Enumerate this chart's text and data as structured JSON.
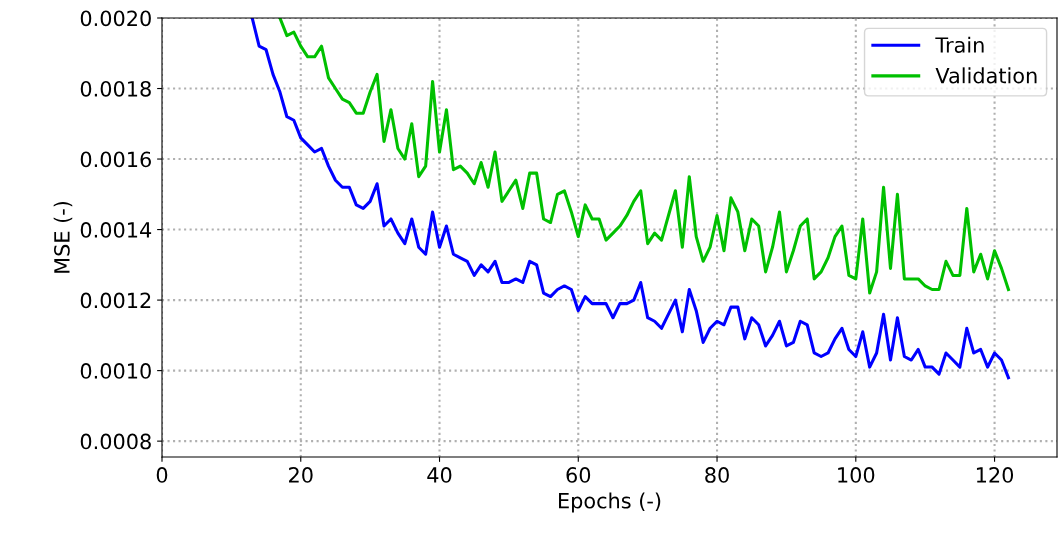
{
  "chart_data": {
    "type": "line",
    "xlabel": "Epochs (-)",
    "ylabel": "MSE (-)",
    "xlim": [
      0,
      129
    ],
    "xticks": [
      0,
      20,
      40,
      60,
      80,
      100,
      120
    ],
    "ylim": [
      0.000755,
      0.002
    ],
    "yticks": [
      {
        "value": 0.0008,
        "label": "0.0008"
      },
      {
        "value": 0.001,
        "label": "0.0010"
      },
      {
        "value": 0.0012,
        "label": "0.0012"
      },
      {
        "value": 0.0014,
        "label": "0.0014"
      },
      {
        "value": 0.0016,
        "label": "0.0016"
      },
      {
        "value": 0.0018,
        "label": "0.0018"
      },
      {
        "value": 0.002,
        "label": "0.0020"
      }
    ],
    "grid": true,
    "legend": "top right",
    "marker": "none",
    "line_style": "solid",
    "series": [
      {
        "name": "Train",
        "color": "#0000ff",
        "x": [
          13,
          14,
          15,
          16,
          17,
          18,
          19,
          20,
          21,
          22,
          23,
          24,
          25,
          26,
          27,
          28,
          29,
          30,
          31,
          32,
          33,
          34,
          35,
          36,
          37,
          38,
          39,
          40,
          41,
          42,
          43,
          44,
          45,
          46,
          47,
          48,
          49,
          50,
          51,
          52,
          53,
          54,
          55,
          56,
          57,
          58,
          59,
          60,
          61,
          62,
          63,
          64,
          65,
          66,
          67,
          68,
          69,
          70,
          71,
          72,
          73,
          74,
          75,
          76,
          77,
          78,
          79,
          80,
          81,
          82,
          83,
          84,
          85,
          86,
          87,
          88,
          89,
          90,
          91,
          92,
          93,
          94,
          95,
          96,
          97,
          98,
          99,
          100,
          101,
          102,
          103,
          104,
          105,
          106,
          107,
          108,
          109,
          110,
          111,
          112,
          113,
          114,
          115,
          116,
          117,
          118,
          119,
          120,
          121,
          122
        ],
        "values": [
          0.002,
          0.00192,
          0.00191,
          0.00184,
          0.00179,
          0.00172,
          0.00171,
          0.00166,
          0.00164,
          0.00162,
          0.00163,
          0.00158,
          0.00154,
          0.00152,
          0.00152,
          0.00147,
          0.00146,
          0.00148,
          0.00153,
          0.00141,
          0.00143,
          0.00139,
          0.00136,
          0.00143,
          0.00135,
          0.00133,
          0.00145,
          0.00135,
          0.00141,
          0.00133,
          0.00132,
          0.00131,
          0.00127,
          0.0013,
          0.00128,
          0.00131,
          0.00125,
          0.00125,
          0.00126,
          0.00125,
          0.00131,
          0.0013,
          0.00122,
          0.00121,
          0.00123,
          0.00124,
          0.00123,
          0.00117,
          0.00121,
          0.00119,
          0.00119,
          0.00119,
          0.00115,
          0.00119,
          0.00119,
          0.0012,
          0.00125,
          0.00115,
          0.00114,
          0.00112,
          0.00116,
          0.0012,
          0.00111,
          0.00123,
          0.00117,
          0.00108,
          0.00112,
          0.00114,
          0.00113,
          0.00118,
          0.00118,
          0.00109,
          0.00115,
          0.00113,
          0.00107,
          0.0011,
          0.00114,
          0.00107,
          0.00108,
          0.00114,
          0.00113,
          0.00105,
          0.00104,
          0.00105,
          0.00109,
          0.00112,
          0.00106,
          0.00104,
          0.00111,
          0.00101,
          0.00105,
          0.00116,
          0.00103,
          0.00115,
          0.00104,
          0.00103,
          0.00106,
          0.00101,
          0.00101,
          0.00099,
          0.00105,
          0.00103,
          0.00101,
          0.00112,
          0.00105,
          0.00106,
          0.00101,
          0.00105,
          0.00103,
          0.00098
        ]
      },
      {
        "name": "Validation",
        "color": "#00c000",
        "x": [
          17,
          18,
          19,
          20,
          21,
          22,
          23,
          24,
          25,
          26,
          27,
          28,
          29,
          30,
          31,
          32,
          33,
          34,
          35,
          36,
          37,
          38,
          39,
          40,
          41,
          42,
          43,
          44,
          45,
          46,
          47,
          48,
          49,
          50,
          51,
          52,
          53,
          54,
          55,
          56,
          57,
          58,
          59,
          60,
          61,
          62,
          63,
          64,
          65,
          66,
          67,
          68,
          69,
          70,
          71,
          72,
          73,
          74,
          75,
          76,
          77,
          78,
          79,
          80,
          81,
          82,
          83,
          84,
          85,
          86,
          87,
          88,
          89,
          90,
          91,
          92,
          93,
          94,
          95,
          96,
          97,
          98,
          99,
          100,
          101,
          102,
          103,
          104,
          105,
          106,
          107,
          108,
          109,
          110,
          111,
          112,
          113,
          114,
          115,
          116,
          117,
          118,
          119,
          120,
          121,
          122
        ],
        "values": [
          0.002,
          0.00195,
          0.00196,
          0.00192,
          0.00189,
          0.00189,
          0.00192,
          0.00183,
          0.0018,
          0.00177,
          0.00176,
          0.00173,
          0.00173,
          0.00179,
          0.00184,
          0.00165,
          0.00174,
          0.00163,
          0.0016,
          0.0017,
          0.00155,
          0.00158,
          0.00182,
          0.00162,
          0.00174,
          0.00157,
          0.00158,
          0.00156,
          0.00153,
          0.00159,
          0.00152,
          0.00162,
          0.00148,
          0.00151,
          0.00154,
          0.00146,
          0.00156,
          0.00156,
          0.00143,
          0.00142,
          0.0015,
          0.00151,
          0.00145,
          0.00138,
          0.00147,
          0.00143,
          0.00143,
          0.00137,
          0.00139,
          0.00141,
          0.00144,
          0.00148,
          0.00151,
          0.00136,
          0.00139,
          0.00137,
          0.00144,
          0.00151,
          0.00135,
          0.00155,
          0.00138,
          0.00131,
          0.00135,
          0.00144,
          0.00134,
          0.00149,
          0.00145,
          0.00134,
          0.00143,
          0.00141,
          0.00128,
          0.00135,
          0.00145,
          0.00128,
          0.00134,
          0.00141,
          0.00143,
          0.00126,
          0.00128,
          0.00132,
          0.00138,
          0.00141,
          0.00127,
          0.00126,
          0.00143,
          0.00122,
          0.00128,
          0.00152,
          0.00129,
          0.0015,
          0.00126,
          0.00126,
          0.00126,
          0.00124,
          0.00123,
          0.00123,
          0.00131,
          0.00127,
          0.00127,
          0.00146,
          0.00128,
          0.00133,
          0.00126,
          0.00134,
          0.00129,
          0.00123
        ]
      }
    ]
  }
}
